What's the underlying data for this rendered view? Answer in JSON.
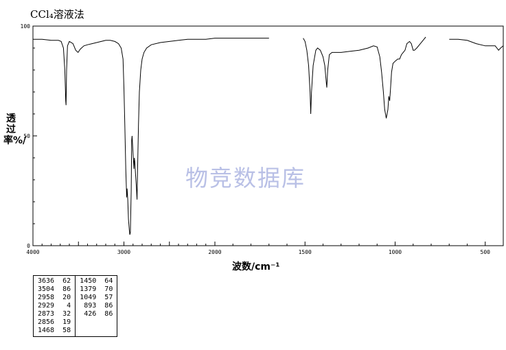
{
  "title": "CCl₄溶液法",
  "watermark": "物竞数据库",
  "chart_data": {
    "type": "line",
    "title": "CCl₄溶液法",
    "xlabel": "波数/cm⁻¹",
    "ylabel": "透过率%/",
    "xlim": [
      4000,
      400
    ],
    "ylim": [
      0,
      100
    ],
    "x_ticks": [
      "4000",
      "3000",
      "2000",
      "1500",
      "1000",
      "500"
    ],
    "y_ticks": [
      "100",
      "50",
      "0"
    ],
    "grid": false,
    "series": [
      {
        "segments": [
          [
            [
              4000,
              94
            ],
            [
              3900,
              94
            ],
            [
              3800,
              93.5
            ],
            [
              3720,
              93.5
            ],
            [
              3690,
              93
            ],
            [
              3665,
              90
            ],
            [
              3650,
              80
            ],
            [
              3640,
              66
            ],
            [
              3636,
              64
            ],
            [
              3630,
              80
            ],
            [
              3620,
              91
            ],
            [
              3600,
              93
            ],
            [
              3560,
              92
            ],
            [
              3530,
              89
            ],
            [
              3504,
              88
            ],
            [
              3480,
              89.5
            ],
            [
              3440,
              91
            ],
            [
              3400,
              91.5
            ],
            [
              3350,
              92
            ],
            [
              3300,
              92.5
            ],
            [
              3250,
              93
            ],
            [
              3200,
              93.5
            ],
            [
              3150,
              93.5
            ],
            [
              3100,
              93
            ],
            [
              3060,
              92
            ],
            [
              3030,
              90
            ],
            [
              3010,
              85
            ],
            [
              3000,
              72
            ],
            [
              2990,
              55
            ],
            [
              2980,
              35
            ],
            [
              2970,
              22
            ],
            [
              2965,
              26
            ],
            [
              2958,
              21
            ],
            [
              2950,
              12
            ],
            [
              2940,
              7
            ],
            [
              2935,
              5
            ],
            [
              2929,
              6
            ],
            [
              2920,
              25
            ],
            [
              2915,
              48
            ],
            [
              2910,
              50
            ],
            [
              2900,
              42
            ],
            [
              2890,
              35
            ],
            [
              2885,
              40
            ],
            [
              2880,
              38
            ],
            [
              2873,
              33
            ],
            [
              2865,
              28
            ],
            [
              2856,
              21
            ],
            [
              2850,
              35
            ],
            [
              2840,
              55
            ],
            [
              2830,
              70
            ],
            [
              2815,
              80
            ],
            [
              2800,
              85
            ],
            [
              2780,
              88
            ],
            [
              2750,
              90
            ],
            [
              2700,
              91.5
            ],
            [
              2600,
              92.5
            ],
            [
              2500,
              93
            ],
            [
              2400,
              93.5
            ],
            [
              2300,
              94
            ],
            [
              2200,
              94
            ],
            [
              2100,
              94
            ],
            [
              2000,
              94.5
            ],
            [
              1900,
              94.5
            ],
            [
              1800,
              94.5
            ],
            [
              1700,
              94.5
            ]
          ],
          [
            [
              1510,
              94.5
            ],
            [
              1500,
              93
            ],
            [
              1490,
              89
            ],
            [
              1480,
              82
            ],
            [
              1472,
              70
            ],
            [
              1468,
              60
            ],
            [
              1464,
              70
            ],
            [
              1455,
              82
            ],
            [
              1440,
              89
            ],
            [
              1430,
              90
            ],
            [
              1415,
              89
            ],
            [
              1400,
              86
            ],
            [
              1390,
              82
            ],
            [
              1383,
              75
            ],
            [
              1379,
              72
            ],
            [
              1374,
              80
            ],
            [
              1365,
              87
            ],
            [
              1350,
              88
            ],
            [
              1300,
              88
            ],
            [
              1250,
              88.5
            ],
            [
              1200,
              89
            ],
            [
              1150,
              90
            ],
            [
              1120,
              91
            ],
            [
              1100,
              90.5
            ],
            [
              1085,
              86
            ],
            [
              1075,
              79
            ],
            [
              1065,
              70
            ],
            [
              1058,
              62
            ],
            [
              1049,
              58
            ],
            [
              1040,
              62
            ],
            [
              1035,
              68
            ],
            [
              1030,
              66
            ],
            [
              1025,
              72
            ],
            [
              1020,
              79
            ],
            [
              1012,
              83
            ],
            [
              1000,
              84
            ],
            [
              985,
              85
            ],
            [
              975,
              85
            ],
            [
              965,
              87
            ],
            [
              955,
              88
            ],
            [
              945,
              89
            ],
            [
              935,
              92
            ],
            [
              920,
              93
            ],
            [
              910,
              92
            ],
            [
              900,
              89
            ],
            [
              893,
              89
            ],
            [
              880,
              90
            ],
            [
              860,
              92
            ],
            [
              840,
              94
            ],
            [
              830,
              95
            ]
          ],
          [
            [
              700,
              94
            ],
            [
              650,
              94
            ],
            [
              600,
              93.5
            ],
            [
              550,
              92
            ],
            [
              500,
              91
            ],
            [
              470,
              91
            ],
            [
              445,
              91
            ],
            [
              435,
              90
            ],
            [
              426,
              89
            ],
            [
              415,
              90
            ],
            [
              400,
              91
            ]
          ]
        ]
      }
    ],
    "peak_table": [
      [
        [
          "3636",
          "62"
        ],
        [
          "3504",
          "86"
        ],
        [
          "2958",
          "20"
        ],
        [
          "2929",
          "4"
        ],
        [
          "2873",
          "32"
        ],
        [
          "2856",
          "19"
        ],
        [
          "1468",
          "58"
        ]
      ],
      [
        [
          "1450",
          "64"
        ],
        [
          "1379",
          "70"
        ],
        [
          "1049",
          "57"
        ],
        [
          "893",
          "86"
        ],
        [
          "426",
          "86"
        ]
      ]
    ]
  }
}
